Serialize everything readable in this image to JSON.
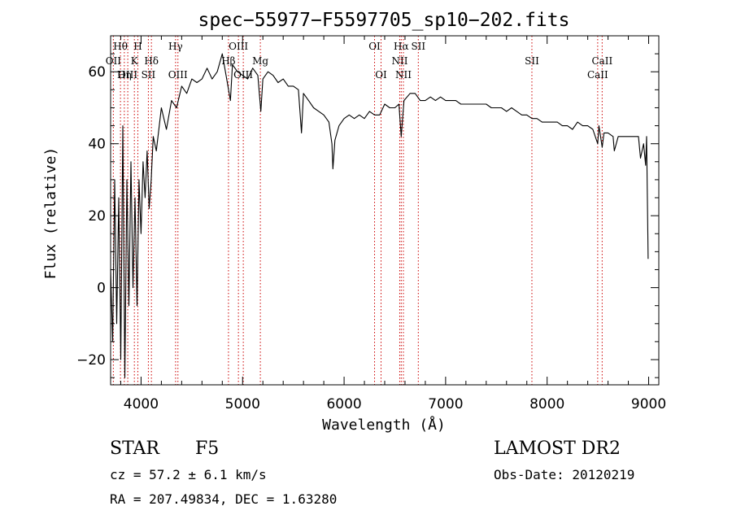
{
  "chart_data": {
    "type": "line",
    "title": "spec−55977−F5597705_sp10−202.fits",
    "xlabel": "Wavelength (Å)",
    "ylabel": "Flux (relative)",
    "xlim": [
      3700,
      9100
    ],
    "ylim": [
      -27,
      70
    ],
    "x_ticks": [
      4000,
      5000,
      6000,
      7000,
      8000,
      9000
    ],
    "y_ticks": [
      -20,
      0,
      20,
      40,
      60
    ],
    "grid": false,
    "series": [
      {
        "points": [
          [
            3700,
            5
          ],
          [
            3720,
            -15
          ],
          [
            3740,
            30
          ],
          [
            3760,
            -10
          ],
          [
            3780,
            25
          ],
          [
            3800,
            -20
          ],
          [
            3820,
            45
          ],
          [
            3840,
            -25
          ],
          [
            3860,
            30
          ],
          [
            3880,
            -5
          ],
          [
            3900,
            35
          ],
          [
            3920,
            0
          ],
          [
            3940,
            25
          ],
          [
            3960,
            -5
          ],
          [
            3980,
            30
          ],
          [
            4000,
            15
          ],
          [
            4020,
            35
          ],
          [
            4040,
            25
          ],
          [
            4060,
            38
          ],
          [
            4080,
            22
          ],
          [
            4100,
            30
          ],
          [
            4120,
            42
          ],
          [
            4150,
            38
          ],
          [
            4200,
            50
          ],
          [
            4250,
            44
          ],
          [
            4300,
            52
          ],
          [
            4350,
            50
          ],
          [
            4400,
            56
          ],
          [
            4450,
            54
          ],
          [
            4500,
            58
          ],
          [
            4550,
            57
          ],
          [
            4600,
            58
          ],
          [
            4650,
            61
          ],
          [
            4700,
            58
          ],
          [
            4750,
            60
          ],
          [
            4800,
            65
          ],
          [
            4850,
            57
          ],
          [
            4880,
            52
          ],
          [
            4900,
            62
          ],
          [
            4950,
            60
          ],
          [
            5000,
            59
          ],
          [
            5050,
            58
          ],
          [
            5100,
            61
          ],
          [
            5150,
            59
          ],
          [
            5180,
            49
          ],
          [
            5200,
            58
          ],
          [
            5250,
            60
          ],
          [
            5300,
            59
          ],
          [
            5350,
            57
          ],
          [
            5400,
            58
          ],
          [
            5450,
            56
          ],
          [
            5500,
            56
          ],
          [
            5550,
            55
          ],
          [
            5580,
            43
          ],
          [
            5600,
            54
          ],
          [
            5650,
            52
          ],
          [
            5700,
            50
          ],
          [
            5750,
            49
          ],
          [
            5800,
            48
          ],
          [
            5850,
            46
          ],
          [
            5880,
            40
          ],
          [
            5890,
            33
          ],
          [
            5910,
            41
          ],
          [
            5950,
            45
          ],
          [
            6000,
            47
          ],
          [
            6050,
            48
          ],
          [
            6100,
            47
          ],
          [
            6150,
            48
          ],
          [
            6200,
            47
          ],
          [
            6250,
            49
          ],
          [
            6300,
            48
          ],
          [
            6350,
            48
          ],
          [
            6400,
            51
          ],
          [
            6450,
            50
          ],
          [
            6500,
            50
          ],
          [
            6540,
            51
          ],
          [
            6563,
            42
          ],
          [
            6590,
            52
          ],
          [
            6650,
            54
          ],
          [
            6700,
            54
          ],
          [
            6750,
            52
          ],
          [
            6800,
            52
          ],
          [
            6850,
            53
          ],
          [
            6900,
            52
          ],
          [
            6950,
            53
          ],
          [
            7000,
            52
          ],
          [
            7050,
            52
          ],
          [
            7100,
            52
          ],
          [
            7150,
            51
          ],
          [
            7200,
            51
          ],
          [
            7250,
            51
          ],
          [
            7300,
            51
          ],
          [
            7350,
            51
          ],
          [
            7400,
            51
          ],
          [
            7450,
            50
          ],
          [
            7500,
            50
          ],
          [
            7550,
            50
          ],
          [
            7600,
            49
          ],
          [
            7650,
            50
          ],
          [
            7700,
            49
          ],
          [
            7750,
            48
          ],
          [
            7800,
            48
          ],
          [
            7850,
            47
          ],
          [
            7900,
            47
          ],
          [
            7950,
            46
          ],
          [
            8000,
            46
          ],
          [
            8050,
            46
          ],
          [
            8100,
            46
          ],
          [
            8150,
            45
          ],
          [
            8200,
            45
          ],
          [
            8250,
            44
          ],
          [
            8300,
            46
          ],
          [
            8350,
            45
          ],
          [
            8400,
            45
          ],
          [
            8450,
            44
          ],
          [
            8498,
            40
          ],
          [
            8510,
            45
          ],
          [
            8542,
            39
          ],
          [
            8560,
            43
          ],
          [
            8600,
            43
          ],
          [
            8650,
            42
          ],
          [
            8662,
            38
          ],
          [
            8700,
            42
          ],
          [
            8750,
            42
          ],
          [
            8800,
            42
          ],
          [
            8850,
            42
          ],
          [
            8900,
            42
          ],
          [
            8920,
            36
          ],
          [
            8950,
            40
          ],
          [
            8970,
            34
          ],
          [
            8980,
            42
          ],
          [
            8995,
            8
          ]
        ]
      }
    ],
    "lines": [
      {
        "name": "Hθ",
        "x": 3797,
        "row": 1
      },
      {
        "name": "OII",
        "x": 3727,
        "row": 2
      },
      {
        "name": "OIII",
        "x": 3869,
        "row": 3
      },
      {
        "name": "Hη",
        "x": 3835,
        "row": 3
      },
      {
        "name": "H",
        "x": 3968,
        "row": 1
      },
      {
        "name": "K",
        "x": 3934,
        "row": 2
      },
      {
        "name": "Hδ",
        "x": 4102,
        "row": 2
      },
      {
        "name": "SII",
        "x": 4072,
        "row": 3
      },
      {
        "name": "Hγ",
        "x": 4340,
        "row": 1
      },
      {
        "name": "OIII",
        "x": 4363,
        "row": 3
      },
      {
        "name": "OIII",
        "x": 4959,
        "row": 1
      },
      {
        "name": "Hβ",
        "x": 4861,
        "row": 2
      },
      {
        "name": "OIII",
        "x": 5007,
        "row": 3
      },
      {
        "name": "Mg",
        "x": 5175,
        "row": 2
      },
      {
        "name": "OI",
        "x": 6300,
        "row": 1
      },
      {
        "name": "OI",
        "x": 6364,
        "row": 3
      },
      {
        "name": "Hα",
        "x": 6563,
        "row": 1
      },
      {
        "name": "SII",
        "x": 6731,
        "row": 1
      },
      {
        "name": "NII",
        "x": 6548,
        "row": 2
      },
      {
        "name": "NII",
        "x": 6584,
        "row": 3
      },
      {
        "name": "SII",
        "x": 7850,
        "row": 2
      },
      {
        "name": "CaII",
        "x": 8542,
        "row": 2
      },
      {
        "name": "CaII",
        "x": 8498,
        "row": 3
      }
    ],
    "line_color": "#cc0000"
  },
  "info": {
    "class": "STAR",
    "subclass": "F5",
    "cz": "cz = 57.2 ± 6.1 km/s",
    "radec": "RA = 207.49834, DEC =    1.63280",
    "survey": "LAMOST DR2",
    "obs_date": "Obs-Date: 20120219"
  }
}
